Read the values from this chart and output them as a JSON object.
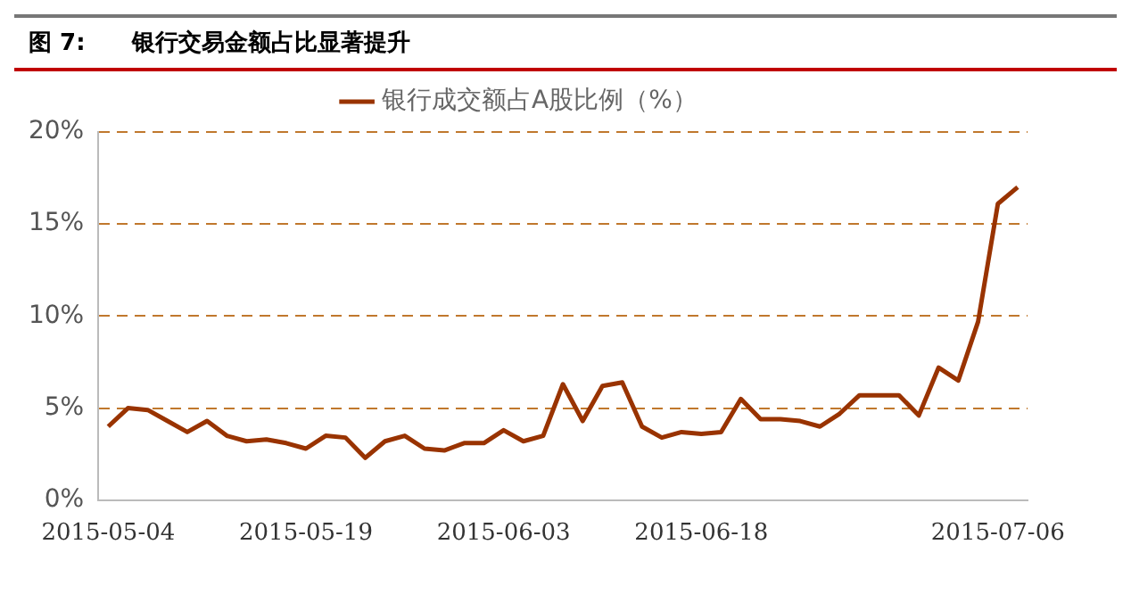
{
  "chart_data": {
    "type": "line",
    "title": "图 7:　　银行交易金额占比显著提升",
    "categories": [
      "2015-05-04",
      null,
      null,
      null,
      null,
      null,
      null,
      null,
      null,
      null,
      "2015-05-19",
      null,
      null,
      null,
      null,
      null,
      null,
      null,
      null,
      null,
      "2015-06-03",
      null,
      null,
      null,
      null,
      null,
      null,
      null,
      null,
      null,
      "2015-06-18",
      null,
      null,
      null,
      null,
      null,
      null,
      null,
      null,
      null,
      null,
      null,
      null,
      null,
      null,
      "2015-07-06",
      null
    ],
    "series": [
      {
        "name": "银行成交额占A股比例（%）",
        "color": "#993300",
        "values": [
          4.0,
          5.0,
          4.9,
          4.3,
          3.7,
          4.3,
          3.5,
          3.2,
          3.3,
          3.1,
          2.8,
          3.5,
          3.4,
          2.3,
          3.2,
          3.5,
          2.8,
          2.7,
          3.1,
          3.1,
          3.8,
          3.2,
          3.5,
          6.3,
          4.3,
          6.2,
          6.4,
          4.0,
          3.4,
          3.7,
          3.6,
          3.7,
          5.5,
          4.4,
          4.4,
          4.3,
          4.0,
          4.7,
          5.7,
          5.7,
          5.7,
          4.6,
          7.2,
          6.5,
          9.7,
          16.1,
          17.0
        ]
      }
    ],
    "ylim": [
      0,
      20
    ],
    "yticks": [
      {
        "value": 0,
        "label": "0%"
      },
      {
        "value": 5,
        "label": "5%"
      },
      {
        "value": 10,
        "label": "10%"
      },
      {
        "value": 15,
        "label": "15%"
      },
      {
        "value": 20,
        "label": "20%"
      }
    ],
    "grid": "y",
    "legend": "top",
    "marker": "none",
    "line_style": "solid"
  }
}
